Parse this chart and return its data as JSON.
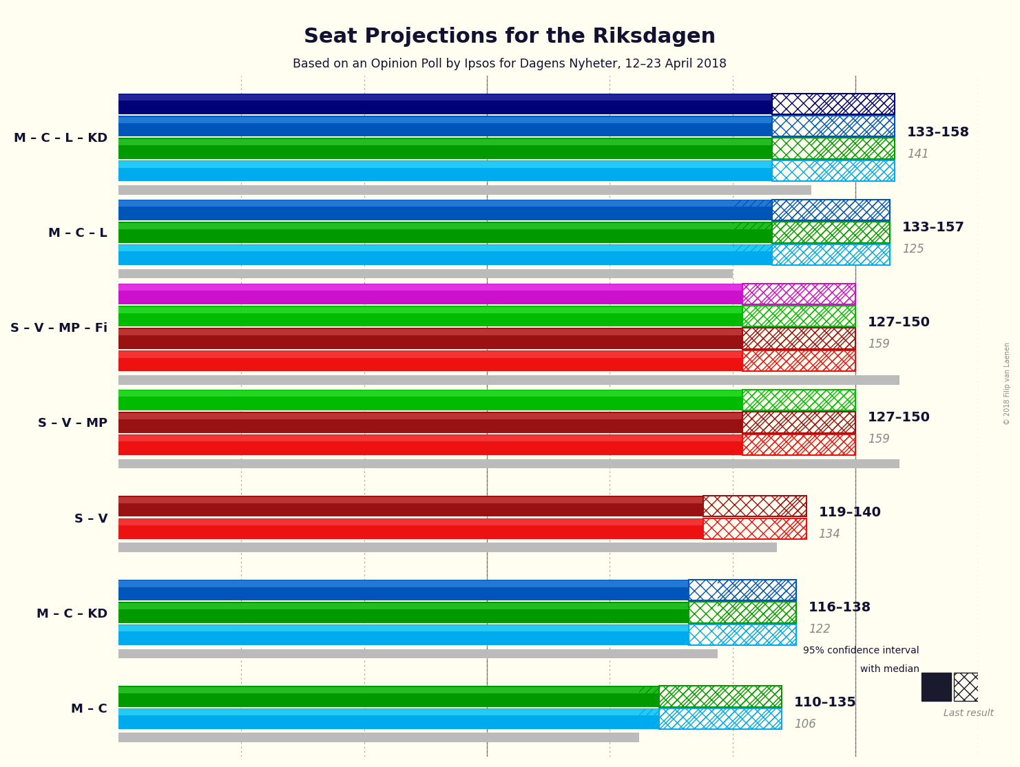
{
  "title": "Seat Projections for the Riksdagen",
  "subtitle": "Based on an Opinion Poll by Ipsos for Dagens Nyheter, 12–23 April 2018",
  "copyright": "© 2018 Filip van Laenen",
  "background_color": "#fffef0",
  "coalitions": [
    {
      "label": "M – C – L – KD",
      "ci_low": 133,
      "ci_high": 158,
      "median": 141,
      "last_result": 141,
      "parties": [
        "M",
        "C",
        "L",
        "KD"
      ],
      "colors": [
        "#00AAEE",
        "#009900",
        "#0055BB",
        "#000077"
      ],
      "ci_label": "133–158",
      "median_label": "141"
    },
    {
      "label": "M – C – L",
      "ci_low": 133,
      "ci_high": 157,
      "median": 125,
      "last_result": 125,
      "parties": [
        "M",
        "C",
        "L"
      ],
      "colors": [
        "#00AAEE",
        "#009900",
        "#0055BB"
      ],
      "ci_label": "133–157",
      "median_label": "125"
    },
    {
      "label": "S – V – MP – Fi",
      "ci_low": 127,
      "ci_high": 150,
      "median": 159,
      "last_result": 159,
      "parties": [
        "S",
        "V",
        "MP",
        "Fi"
      ],
      "colors": [
        "#EE1111",
        "#991111",
        "#00BB00",
        "#CC11CC"
      ],
      "ci_label": "127–150",
      "median_label": "159"
    },
    {
      "label": "S – V – MP",
      "ci_low": 127,
      "ci_high": 150,
      "median": 159,
      "last_result": 159,
      "parties": [
        "S",
        "V",
        "MP"
      ],
      "colors": [
        "#EE1111",
        "#991111",
        "#00BB00"
      ],
      "ci_label": "127–150",
      "median_label": "159"
    },
    {
      "label": "S – V",
      "ci_low": 119,
      "ci_high": 140,
      "median": 134,
      "last_result": 134,
      "parties": [
        "S",
        "V"
      ],
      "colors": [
        "#EE1111",
        "#991111"
      ],
      "ci_label": "119–140",
      "median_label": "134"
    },
    {
      "label": "M – C – KD",
      "ci_low": 116,
      "ci_high": 138,
      "median": 122,
      "last_result": 122,
      "parties": [
        "M",
        "C",
        "KD"
      ],
      "colors": [
        "#00AAEE",
        "#009900",
        "#0055BB"
      ],
      "ci_label": "116–138",
      "median_label": "122"
    },
    {
      "label": "M – C",
      "ci_low": 110,
      "ci_high": 135,
      "median": 106,
      "last_result": 106,
      "parties": [
        "M",
        "C"
      ],
      "colors": [
        "#00AAEE",
        "#009900"
      ],
      "ci_label": "110–135",
      "median_label": "106"
    }
  ],
  "x_max": 175,
  "dotted_lines": [
    25,
    50,
    75,
    100,
    125,
    150,
    175
  ],
  "solid_vlines": [
    75,
    150
  ],
  "gray_color": "#BBBBBB",
  "label_color": "#111133",
  "median_label_color": "#888888"
}
